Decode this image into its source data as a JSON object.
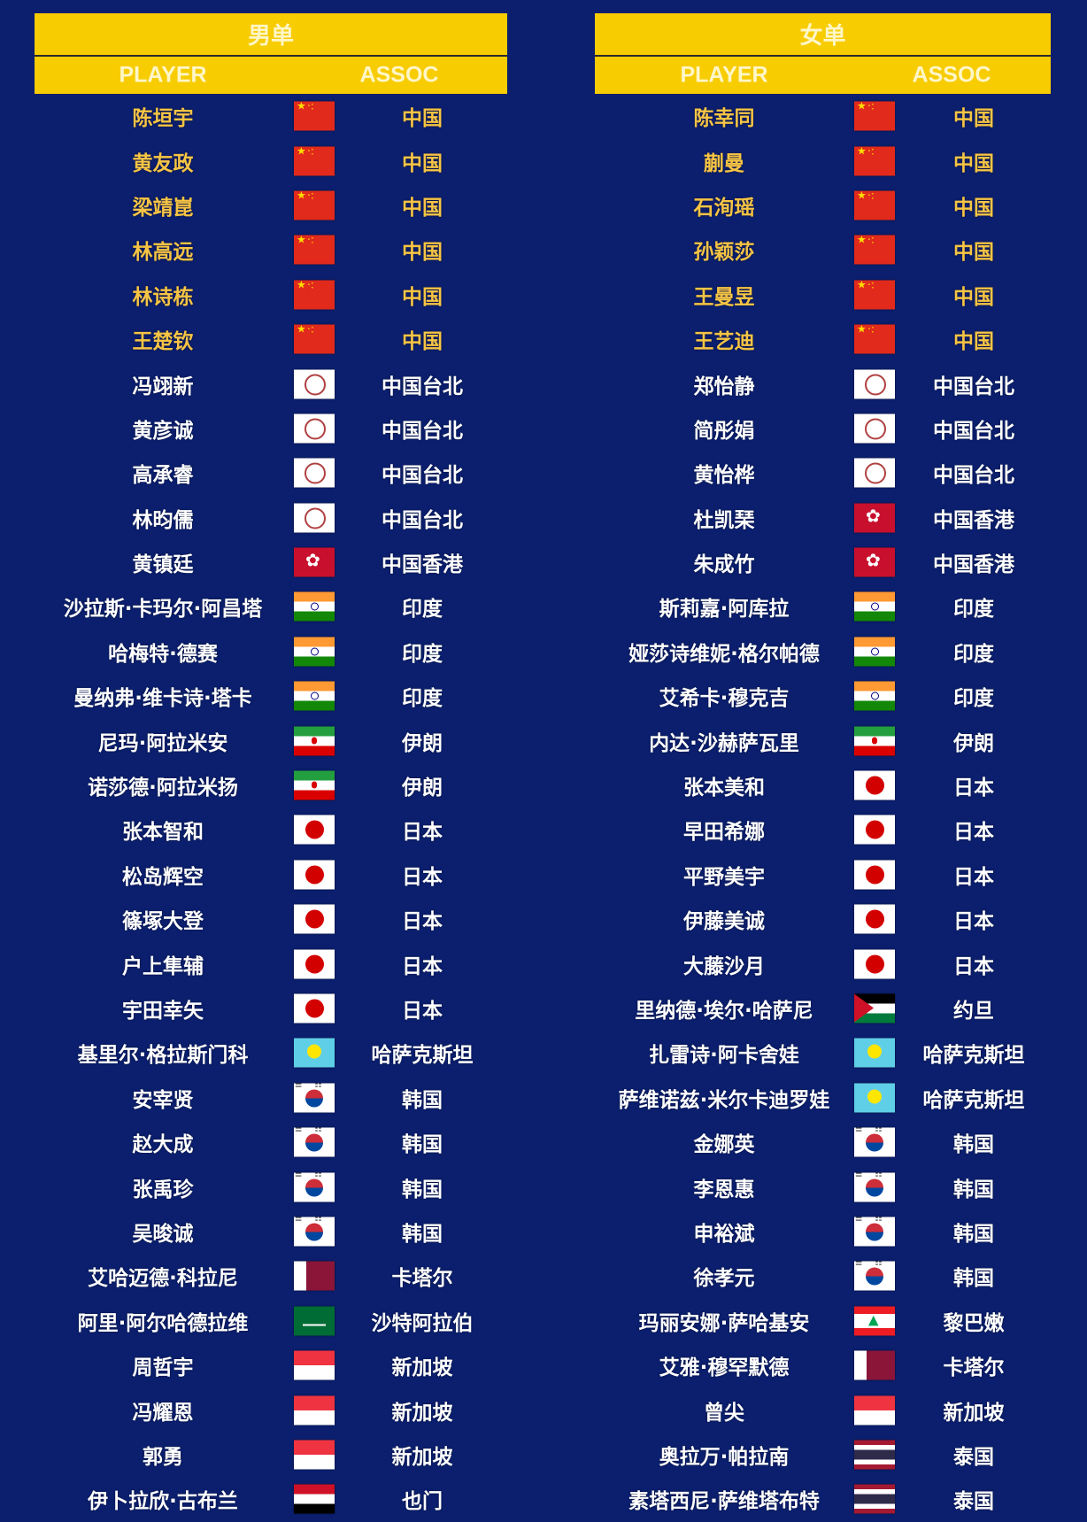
{
  "men": {
    "title": "男单",
    "col_player": "PLAYER",
    "col_assoc": "ASSOC",
    "rows": [
      {
        "name": "陈垣宇",
        "flag": "cn",
        "assoc": "中国"
      },
      {
        "name": "黄友政",
        "flag": "cn",
        "assoc": "中国"
      },
      {
        "name": "梁靖崑",
        "flag": "cn",
        "assoc": "中国"
      },
      {
        "name": "林高远",
        "flag": "cn",
        "assoc": "中国"
      },
      {
        "name": "林诗栋",
        "flag": "cn",
        "assoc": "中国"
      },
      {
        "name": "王楚钦",
        "flag": "cn",
        "assoc": "中国"
      },
      {
        "name": "冯翊新",
        "flag": "tpe",
        "assoc": "中国台北"
      },
      {
        "name": "黄彦诚",
        "flag": "tpe",
        "assoc": "中国台北"
      },
      {
        "name": "高承睿",
        "flag": "tpe",
        "assoc": "中国台北"
      },
      {
        "name": "林昀儒",
        "flag": "tpe",
        "assoc": "中国台北"
      },
      {
        "name": "黄镇廷",
        "flag": "hk",
        "assoc": "中国香港"
      },
      {
        "name": "沙拉斯·卡玛尔·阿昌塔",
        "flag": "in",
        "assoc": "印度"
      },
      {
        "name": "哈梅特·德赛",
        "flag": "in",
        "assoc": "印度"
      },
      {
        "name": "曼纳弗·维卡诗·塔卡",
        "flag": "in",
        "assoc": "印度"
      },
      {
        "name": "尼玛·阿拉米安",
        "flag": "ir",
        "assoc": "伊朗"
      },
      {
        "name": "诺莎德·阿拉米扬",
        "flag": "ir",
        "assoc": "伊朗"
      },
      {
        "name": "张本智和",
        "flag": "jp",
        "assoc": "日本"
      },
      {
        "name": "松岛辉空",
        "flag": "jp",
        "assoc": "日本"
      },
      {
        "name": "篠塚大登",
        "flag": "jp",
        "assoc": "日本"
      },
      {
        "name": "户上隼辅",
        "flag": "jp",
        "assoc": "日本"
      },
      {
        "name": "宇田幸矢",
        "flag": "jp",
        "assoc": "日本"
      },
      {
        "name": "基里尔·格拉斯门科",
        "flag": "kz",
        "assoc": "哈萨克斯坦"
      },
      {
        "name": "安宰贤",
        "flag": "kr",
        "assoc": "韩国"
      },
      {
        "name": "赵大成",
        "flag": "kr",
        "assoc": "韩国"
      },
      {
        "name": "张禹珍",
        "flag": "kr",
        "assoc": "韩国"
      },
      {
        "name": "吴晙诚",
        "flag": "kr",
        "assoc": "韩国"
      },
      {
        "name": "艾哈迈德·科拉尼",
        "flag": "qa",
        "assoc": "卡塔尔"
      },
      {
        "name": "阿里·阿尔哈德拉维",
        "flag": "sa",
        "assoc": "沙特阿拉伯"
      },
      {
        "name": "周哲宇",
        "flag": "sg",
        "assoc": "新加坡"
      },
      {
        "name": "冯耀恩",
        "flag": "sg",
        "assoc": "新加坡"
      },
      {
        "name": "郭勇",
        "flag": "sg",
        "assoc": "新加坡"
      },
      {
        "name": "伊卜拉欣·古布兰",
        "flag": "ye",
        "assoc": "也门"
      }
    ]
  },
  "women": {
    "title": "女单",
    "col_player": "PLAYER",
    "col_assoc": "ASSOC",
    "rows": [
      {
        "name": "陈幸同",
        "flag": "cn",
        "assoc": "中国"
      },
      {
        "name": "蒯曼",
        "flag": "cn",
        "assoc": "中国"
      },
      {
        "name": "石洵瑶",
        "flag": "cn",
        "assoc": "中国"
      },
      {
        "name": "孙颖莎",
        "flag": "cn",
        "assoc": "中国"
      },
      {
        "name": "王曼昱",
        "flag": "cn",
        "assoc": "中国"
      },
      {
        "name": "王艺迪",
        "flag": "cn",
        "assoc": "中国"
      },
      {
        "name": "郑怡静",
        "flag": "tpe",
        "assoc": "中国台北"
      },
      {
        "name": "简彤娟",
        "flag": "tpe",
        "assoc": "中国台北"
      },
      {
        "name": "黄怡桦",
        "flag": "tpe",
        "assoc": "中国台北"
      },
      {
        "name": "杜凯琹",
        "flag": "hk",
        "assoc": "中国香港"
      },
      {
        "name": "朱成竹",
        "flag": "hk",
        "assoc": "中国香港"
      },
      {
        "name": "斯莉嘉·阿库拉",
        "flag": "in",
        "assoc": "印度"
      },
      {
        "name": "娅莎诗维妮·格尔帕德",
        "flag": "in",
        "assoc": "印度"
      },
      {
        "name": "艾希卡·穆克吉",
        "flag": "in",
        "assoc": "印度"
      },
      {
        "name": "内达·沙赫萨瓦里",
        "flag": "ir",
        "assoc": "伊朗"
      },
      {
        "name": "张本美和",
        "flag": "jp",
        "assoc": "日本"
      },
      {
        "name": "早田希娜",
        "flag": "jp",
        "assoc": "日本"
      },
      {
        "name": "平野美宇",
        "flag": "jp",
        "assoc": "日本"
      },
      {
        "name": "伊藤美诚",
        "flag": "jp",
        "assoc": "日本"
      },
      {
        "name": "大藤沙月",
        "flag": "jp",
        "assoc": "日本"
      },
      {
        "name": "里纳德·埃尔·哈萨尼",
        "flag": "jo",
        "assoc": "约旦"
      },
      {
        "name": "扎雷诗·阿卡舍娃",
        "flag": "kz",
        "assoc": "哈萨克斯坦"
      },
      {
        "name": "萨维诺兹·米尔卡迪罗娃",
        "flag": "kz",
        "assoc": "哈萨克斯坦"
      },
      {
        "name": "金娜英",
        "flag": "kr",
        "assoc": "韩国"
      },
      {
        "name": "李恩惠",
        "flag": "kr",
        "assoc": "韩国"
      },
      {
        "name": "申裕斌",
        "flag": "kr",
        "assoc": "韩国"
      },
      {
        "name": "徐孝元",
        "flag": "kr",
        "assoc": "韩国"
      },
      {
        "name": "玛丽安娜·萨哈基安",
        "flag": "lb",
        "assoc": "黎巴嫩"
      },
      {
        "name": "艾雅·穆罕默德",
        "flag": "qa",
        "assoc": "卡塔尔"
      },
      {
        "name": "曾尖",
        "flag": "sg",
        "assoc": "新加坡"
      },
      {
        "name": "奥拉万·帕拉南",
        "flag": "th",
        "assoc": "泰国"
      },
      {
        "name": "素塔西尼·萨维塔布特",
        "flag": "th",
        "assoc": "泰国"
      }
    ]
  },
  "colors": {
    "background": "#0b1f6e",
    "header": "#f7cc00",
    "highlight_text": "#f6c445",
    "text": "#ffffff"
  }
}
